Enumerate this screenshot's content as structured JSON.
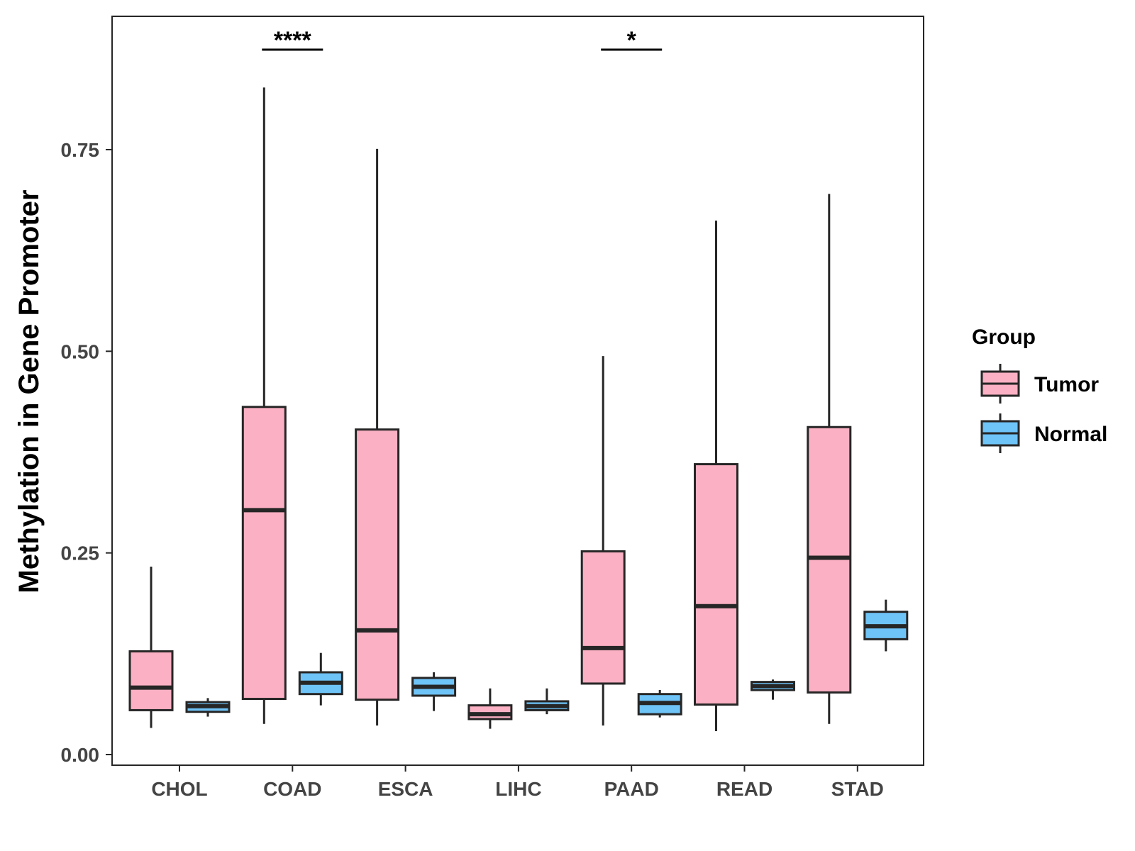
{
  "chart_data": {
    "type": "boxplot",
    "title": "",
    "xlabel": "",
    "ylabel": "Methylation in Gene Promoter",
    "ylim": [
      -0.013,
      0.915
    ],
    "yticks": [
      0.0,
      0.25,
      0.5,
      0.75
    ],
    "ytick_labels": [
      "0.00",
      "0.25",
      "0.50",
      "0.75"
    ],
    "grid": false,
    "categories": [
      "CHOL",
      "COAD",
      "ESCA",
      "LIHC",
      "PAAD",
      "READ",
      "STAD"
    ],
    "legend": {
      "title": "Group",
      "position": "right",
      "entries": [
        "Tumor",
        "Normal"
      ]
    },
    "colors": {
      "Tumor": "#FBB0C3",
      "Normal": "#6EC3F7",
      "stroke": "#262626"
    },
    "series": [
      {
        "name": "Tumor",
        "boxes": [
          {
            "min": 0.033,
            "q1": 0.055,
            "median": 0.083,
            "q3": 0.128,
            "max": 0.233
          },
          {
            "min": 0.038,
            "q1": 0.069,
            "median": 0.303,
            "q3": 0.431,
            "max": 0.827
          },
          {
            "min": 0.036,
            "q1": 0.068,
            "median": 0.154,
            "q3": 0.403,
            "max": 0.751
          },
          {
            "min": 0.032,
            "q1": 0.044,
            "median": 0.05,
            "q3": 0.061,
            "max": 0.082
          },
          {
            "min": 0.036,
            "q1": 0.088,
            "median": 0.132,
            "q3": 0.252,
            "max": 0.494
          },
          {
            "min": 0.029,
            "q1": 0.062,
            "median": 0.184,
            "q3": 0.36,
            "max": 0.662
          },
          {
            "min": 0.038,
            "q1": 0.077,
            "median": 0.244,
            "q3": 0.406,
            "max": 0.695
          }
        ]
      },
      {
        "name": "Normal",
        "boxes": [
          {
            "min": 0.047,
            "q1": 0.053,
            "median": 0.06,
            "q3": 0.065,
            "max": 0.07
          },
          {
            "min": 0.061,
            "q1": 0.075,
            "median": 0.089,
            "q3": 0.102,
            "max": 0.126
          },
          {
            "min": 0.054,
            "q1": 0.073,
            "median": 0.084,
            "q3": 0.095,
            "max": 0.102
          },
          {
            "min": 0.05,
            "q1": 0.055,
            "median": 0.06,
            "q3": 0.066,
            "max": 0.082
          },
          {
            "min": 0.046,
            "q1": 0.05,
            "median": 0.064,
            "q3": 0.075,
            "max": 0.08
          },
          {
            "min": 0.068,
            "q1": 0.08,
            "median": 0.085,
            "q3": 0.09,
            "max": 0.093
          },
          {
            "min": 0.128,
            "q1": 0.143,
            "median": 0.159,
            "q3": 0.177,
            "max": 0.192
          }
        ]
      }
    ],
    "annotations": [
      {
        "category": "COAD",
        "label": "****",
        "y": 0.874
      },
      {
        "category": "PAAD",
        "label": "*",
        "y": 0.874
      }
    ]
  }
}
